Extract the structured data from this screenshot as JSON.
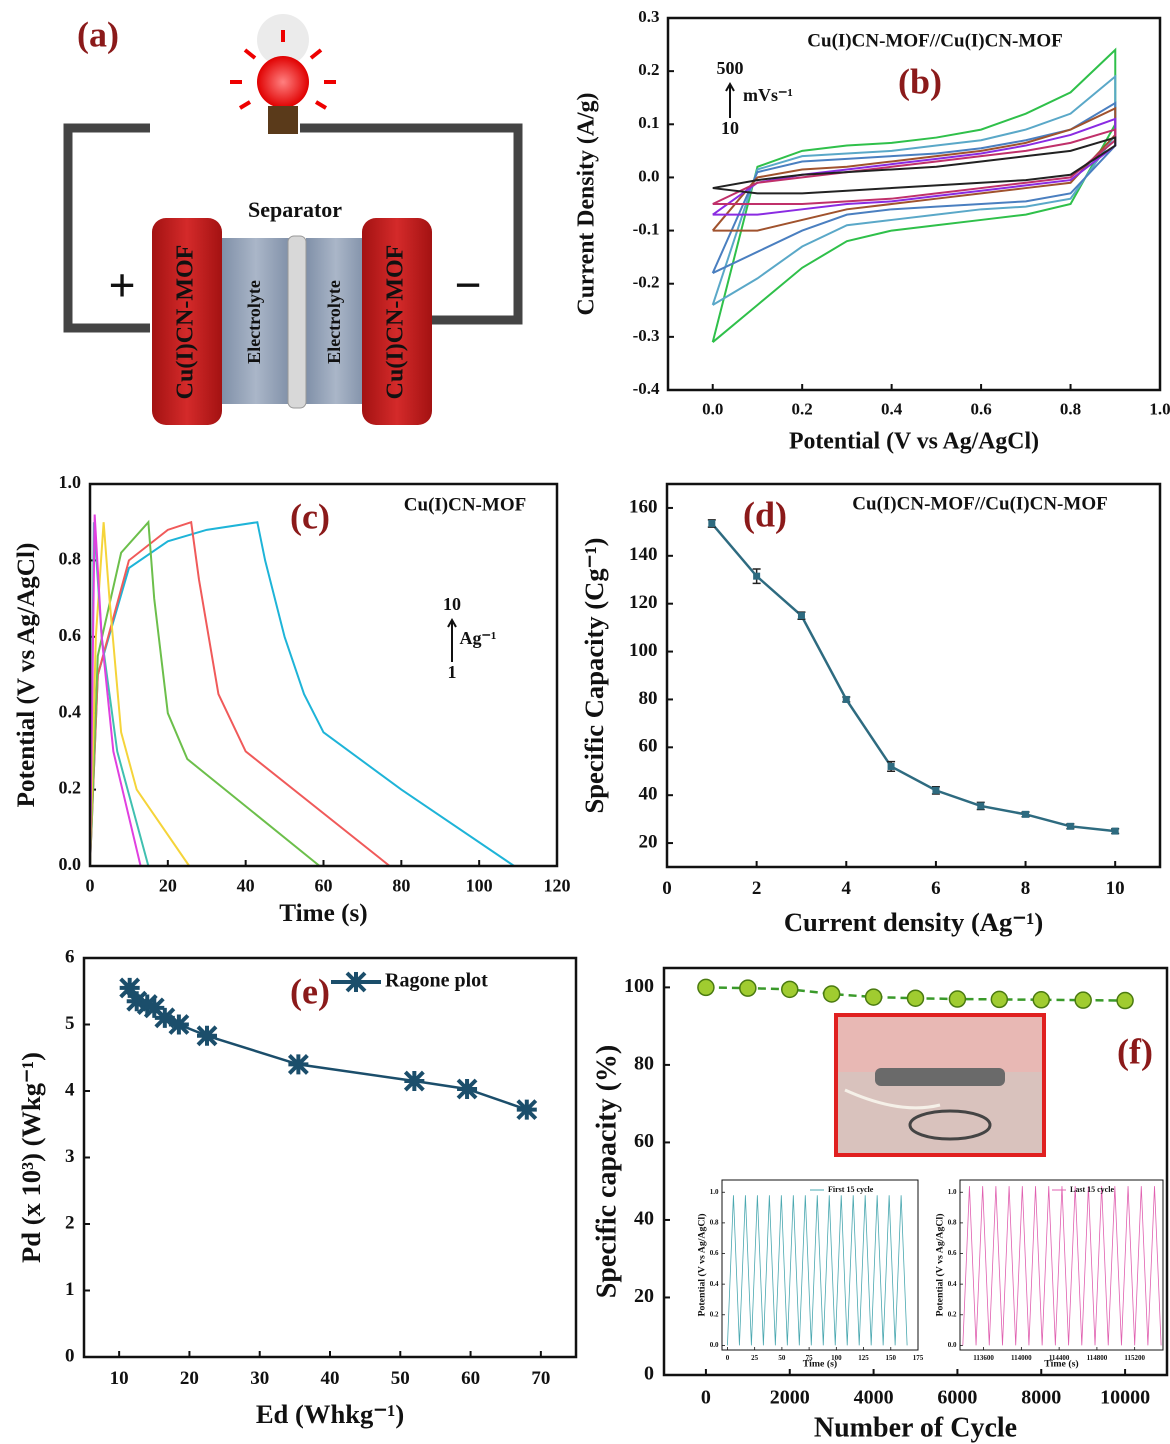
{
  "diagram": {
    "label": "(a)",
    "separator": "Separator",
    "electrodes": [
      "Cu(I)CN-MOF",
      "Cu(I)CN-MOF"
    ],
    "electrolytes": [
      "Electrolyte",
      "Electrolyte"
    ],
    "plus": "+",
    "minus": "−"
  },
  "chart_data": [
    {
      "type": "line",
      "title": "Cu(I)CN-MOF//Cu(I)CN-MOF",
      "panel_label": "(b)",
      "annotations": [
        "500",
        "mVs⁻¹",
        "10"
      ],
      "x_label": "Potential (V vs Ag/AgCl)",
      "y_label": "Current Density (A/g)",
      "xlim": [
        -0.1,
        1.0
      ],
      "xticks": [
        {
          "value": 0,
          "label": "0.0"
        },
        0.2,
        0.4,
        0.6,
        0.8,
        {
          "value": 1,
          "label": "1.0"
        }
      ],
      "ylim": [
        -0.4,
        0.3
      ],
      "yticks": [
        -0.4,
        -0.3,
        -0.2,
        -0.1,
        {
          "value": 0,
          "label": "0.0"
        },
        0.1,
        0.2,
        0.3
      ],
      "x": [
        0,
        0.1,
        0.2,
        0.3,
        0.4,
        0.5,
        0.6,
        0.7,
        0.8,
        0.9,
        0.9,
        0.8,
        0.7,
        0.6,
        0.5,
        0.4,
        0.3,
        0.2,
        0.1,
        0
      ],
      "series": [
        {
          "color": "#2fc04a",
          "values": [
            -0.31,
            0.02,
            0.05,
            0.06,
            0.065,
            0.075,
            0.09,
            0.12,
            0.16,
            0.24,
            0.1,
            -0.05,
            -0.07,
            -0.08,
            -0.09,
            -0.1,
            -0.12,
            -0.17,
            -0.24,
            -0.31
          ]
        },
        {
          "color": "#5aa8c8",
          "values": [
            -0.24,
            0.015,
            0.04,
            0.045,
            0.05,
            0.06,
            0.07,
            0.09,
            0.12,
            0.19,
            0.08,
            -0.04,
            -0.055,
            -0.06,
            -0.07,
            -0.08,
            -0.09,
            -0.13,
            -0.19,
            -0.24
          ]
        },
        {
          "color": "#4a7fc0",
          "values": [
            -0.18,
            0.01,
            0.03,
            0.035,
            0.04,
            0.045,
            0.055,
            0.07,
            0.09,
            0.14,
            0.06,
            -0.03,
            -0.045,
            -0.05,
            -0.055,
            -0.06,
            -0.07,
            -0.1,
            -0.14,
            -0.18
          ]
        },
        {
          "color": "#a0522d",
          "values": [
            -0.1,
            0,
            0.015,
            0.02,
            0.03,
            0.04,
            0.05,
            0.065,
            0.09,
            0.13,
            0.08,
            -0.01,
            -0.02,
            -0.03,
            -0.04,
            -0.05,
            -0.06,
            -0.08,
            -0.1,
            -0.1
          ]
        },
        {
          "color": "#8a2be2",
          "values": [
            -0.07,
            -0.01,
            0.005,
            0.015,
            0.025,
            0.035,
            0.045,
            0.06,
            0.08,
            0.11,
            0.06,
            -0.005,
            -0.015,
            -0.025,
            -0.035,
            -0.045,
            -0.05,
            -0.06,
            -0.07,
            -0.07
          ]
        },
        {
          "color": "#c0306a",
          "values": [
            -0.05,
            -0.01,
            0,
            0.01,
            0.02,
            0.03,
            0.04,
            0.05,
            0.065,
            0.09,
            0.07,
            0,
            -0.01,
            -0.02,
            -0.03,
            -0.04,
            -0.045,
            -0.05,
            -0.05,
            -0.05
          ]
        },
        {
          "color": "#222222",
          "values": [
            -0.02,
            -0.005,
            0.005,
            0.01,
            0.015,
            0.02,
            0.03,
            0.04,
            0.05,
            0.075,
            0.06,
            0.005,
            -0.005,
            -0.01,
            -0.015,
            -0.02,
            -0.025,
            -0.03,
            -0.03,
            -0.02
          ]
        }
      ]
    },
    {
      "type": "line",
      "title": "Cu(I)CN-MOF",
      "panel_label": "(c)",
      "annotations": [
        "10",
        "Ag⁻¹",
        "1"
      ],
      "x_label": "Time (s)",
      "y_label": "Potential (V vs Ag/AgCl)",
      "xlim": [
        0,
        120
      ],
      "xticks": [
        0,
        20,
        40,
        60,
        80,
        100,
        120
      ],
      "ylim": [
        0,
        1
      ],
      "yticks": [
        {
          "value": 0,
          "label": "0.0"
        },
        0.2,
        0.4,
        0.6,
        0.8,
        {
          "value": 1,
          "label": "1.0"
        }
      ],
      "series": [
        {
          "color": "#1eb4d8",
          "x": [
            0,
            2,
            10,
            20,
            30,
            43,
            45,
            50,
            55,
            60,
            80,
            109
          ],
          "values": [
            0,
            0.5,
            0.78,
            0.85,
            0.88,
            0.9,
            0.8,
            0.6,
            0.45,
            0.35,
            0.2,
            0
          ]
        },
        {
          "color": "#f05a5a",
          "x": [
            0,
            2,
            10,
            20,
            26,
            28,
            33,
            40,
            77
          ],
          "values": [
            0,
            0.5,
            0.8,
            0.88,
            0.9,
            0.75,
            0.45,
            0.3,
            0
          ]
        },
        {
          "color": "#6cbf4b",
          "x": [
            0,
            2,
            8,
            15,
            16.5,
            20,
            25,
            59
          ],
          "values": [
            0,
            0.55,
            0.82,
            0.9,
            0.7,
            0.4,
            0.28,
            0
          ]
        },
        {
          "color": "#f5d43a",
          "x": [
            0,
            1.5,
            3.5,
            5,
            8,
            12,
            25.5
          ],
          "values": [
            0,
            0.6,
            0.9,
            0.7,
            0.35,
            0.2,
            0
          ]
        },
        {
          "color": "#40c0b0",
          "x": [
            0,
            1,
            3,
            7,
            15
          ],
          "values": [
            0,
            0.9,
            0.6,
            0.3,
            0
          ]
        },
        {
          "color": "#e040e0",
          "x": [
            0,
            1.2,
            3,
            6,
            13
          ],
          "values": [
            0,
            0.92,
            0.6,
            0.3,
            0
          ]
        }
      ]
    },
    {
      "type": "line",
      "title": "Cu(I)CN-MOF//Cu(I)CN-MOF",
      "panel_label": "(d)",
      "marker": "square",
      "x_label": "Current density (Ag⁻¹)",
      "y_label": "Specific Capacity (Cg⁻¹)",
      "xlim": [
        0,
        11
      ],
      "xticks": [
        0,
        2,
        4,
        6,
        8,
        10
      ],
      "ylim": [
        10,
        170
      ],
      "yticks": [
        20,
        40,
        60,
        80,
        100,
        120,
        140,
        160
      ],
      "x": [
        1,
        2,
        3,
        4,
        5,
        6,
        7,
        8,
        9,
        10
      ],
      "series": [
        {
          "color": "#2e6b80",
          "values": [
            153.5,
            131.5,
            115,
            80,
            52,
            42,
            35.5,
            32,
            27,
            25
          ],
          "errors": [
            1.5,
            3,
            1.5,
            1,
            2,
            1.5,
            1.5,
            1,
            1,
            1
          ]
        }
      ]
    },
    {
      "type": "line",
      "panel_label": "(e)",
      "marker": "asterisk",
      "x_label": "Ed (Whkg⁻¹)",
      "y_label": "Pd (x 10³) (Wkg⁻¹)",
      "xlim": [
        5,
        75
      ],
      "xticks": [
        10,
        20,
        30,
        40,
        50,
        60,
        70
      ],
      "ylim": [
        0,
        6
      ],
      "yticks": [
        0,
        1,
        2,
        3,
        4,
        5,
        6
      ],
      "x": [
        11.5,
        12.5,
        14,
        15,
        16.5,
        18.5,
        22.5,
        35.5,
        52,
        59.5,
        68
      ],
      "series": [
        {
          "name": "Ragone plot",
          "color": "#1b4e6b",
          "values": [
            5.55,
            5.35,
            5.3,
            5.25,
            5.1,
            5.0,
            4.83,
            4.4,
            4.15,
            4.03,
            3.72
          ]
        }
      ]
    },
    {
      "type": "line",
      "panel_label": "(f)",
      "marker": "circle",
      "line_style": "dashed",
      "x_label": "Number of Cycle",
      "y_label": "Specific capacity (%)",
      "xlim": [
        -1000,
        11000
      ],
      "xticks": [
        0,
        2000,
        4000,
        6000,
        8000,
        10000
      ],
      "ylim": [
        0,
        105
      ],
      "yticks": [
        0,
        20,
        40,
        60,
        80,
        100
      ],
      "x": [
        0,
        1000,
        2000,
        3000,
        4000,
        5000,
        6000,
        7000,
        8000,
        9000,
        10000
      ],
      "series": [
        {
          "color": "#3a9a2a",
          "values": [
            100,
            99.8,
            99.5,
            98.3,
            97.5,
            97.2,
            97,
            96.9,
            96.8,
            96.7,
            96.6
          ]
        }
      ]
    },
    {
      "type": "line",
      "x_label": "Time (s)",
      "y_label": "Potential (V vs Ag/AgCl)",
      "xlim": [
        -5,
        175
      ],
      "xticks": [
        0,
        25,
        50,
        75,
        100,
        125,
        150,
        175
      ],
      "ylim": [
        -0.03,
        1.08
      ],
      "yticks": [
        {
          "value": 0,
          "label": "0.0"
        },
        0.2,
        0.4,
        0.6,
        0.8,
        {
          "value": 1,
          "label": "1.0"
        }
      ],
      "x": [
        0,
        5.5,
        11,
        16.5,
        22,
        27.5,
        33,
        38.5,
        44,
        49.5,
        55,
        60.5,
        66,
        71.5,
        77,
        82.5,
        88,
        93.5,
        99,
        104.5,
        110,
        115.5,
        121,
        126.5,
        132,
        137.5,
        143,
        148.5,
        154,
        159.5,
        165
      ],
      "series": [
        {
          "name": "First 15 cycle",
          "color": "#4aa8b0",
          "values": [
            0,
            0.98,
            0,
            0.98,
            0,
            0.98,
            0,
            0.98,
            0,
            0.98,
            0,
            0.98,
            0,
            0.98,
            0,
            0.98,
            0,
            0.98,
            0,
            0.98,
            0,
            0.98,
            0,
            0.98,
            0,
            0.98,
            0,
            0.98,
            0,
            0.98,
            0
          ]
        }
      ]
    },
    {
      "type": "line",
      "x_label": "Time (s)",
      "y_label": "Potential (V vs Ag/AgCl)",
      "xlim": [
        113350,
        115500
      ],
      "xticks": [
        113600,
        114000,
        114400,
        114800,
        115200
      ],
      "ylim": [
        -0.03,
        1.08
      ],
      "yticks": [
        {
          "value": 0,
          "label": "0.0"
        },
        0.2,
        0.4,
        0.6,
        0.8,
        {
          "value": 1,
          "label": "1.0"
        }
      ],
      "x": [
        113380,
        113450,
        113520,
        113590,
        113660,
        113730,
        113800,
        113870,
        113940,
        114010,
        114080,
        114150,
        114220,
        114290,
        114360,
        114430,
        114500,
        114570,
        114640,
        114710,
        114780,
        114850,
        114920,
        114990,
        115060,
        115130,
        115200,
        115270,
        115340,
        115410,
        115480
      ],
      "series": [
        {
          "name": "Last 15 cycle",
          "color": "#e060b0",
          "values": [
            0,
            1.04,
            0,
            1.04,
            0,
            1.04,
            0,
            1.04,
            0,
            1.04,
            0,
            1.04,
            0,
            1.04,
            0,
            1.04,
            0,
            1.04,
            0,
            1.04,
            0,
            1.04,
            0,
            1.04,
            0,
            1.04,
            0,
            1.04,
            0,
            1.04,
            0
          ]
        }
      ]
    }
  ]
}
